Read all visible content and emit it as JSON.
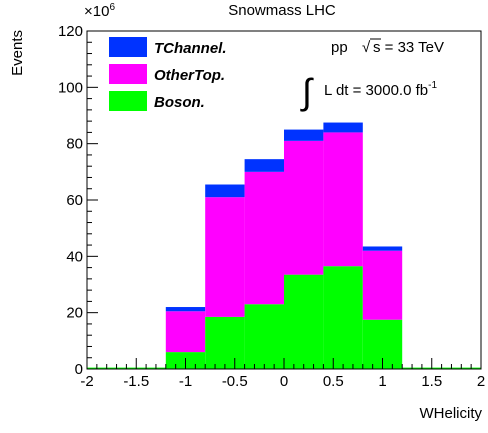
{
  "chart_data": {
    "type": "bar",
    "stacked": true,
    "title": "Snowmass LHC",
    "xlabel": "WHelicity",
    "ylabel": "Events",
    "y_multiplier": "×10",
    "y_multiplier_exponent": "6",
    "xlim": [
      -2,
      2
    ],
    "ylim": [
      0,
      120
    ],
    "x_ticks": [
      "-2",
      "-1.5",
      "-1",
      "-0.5",
      "0",
      "0.5",
      "1",
      "1.5",
      "2"
    ],
    "y_ticks": [
      "0",
      "20",
      "40",
      "60",
      "80",
      "100",
      "120"
    ],
    "bin_edges": [
      -2.0,
      -1.6,
      -1.2,
      -0.8,
      -0.4,
      0.0,
      0.4,
      0.8,
      1.2,
      1.6,
      2.0
    ],
    "series": [
      {
        "name": "Boson.",
        "color": "#00ff00",
        "values": [
          0.5,
          0.5,
          6,
          18.5,
          23,
          33.5,
          36.5,
          17.5,
          0.5,
          0.5
        ]
      },
      {
        "name": "OtherTop.",
        "color": "#ff00ff",
        "values": [
          0,
          0,
          14.5,
          42.5,
          47,
          47.5,
          47.5,
          24.5,
          0,
          0
        ]
      },
      {
        "name": "TChannel.",
        "color": "#0033ff",
        "values": [
          0,
          0,
          1.5,
          4.5,
          4.5,
          4,
          3.5,
          1.5,
          0,
          0
        ]
      }
    ],
    "legend": {
      "position": "top-left",
      "order": [
        "TChannel.",
        "OtherTop.",
        "Boson."
      ]
    },
    "annotations": {
      "process": "pp",
      "sqrt": "√",
      "energy": "s = 33 TeV",
      "integral": "∫",
      "lumi": "L dt = 3000.0 fb",
      "lumi_exp": "-1"
    }
  }
}
